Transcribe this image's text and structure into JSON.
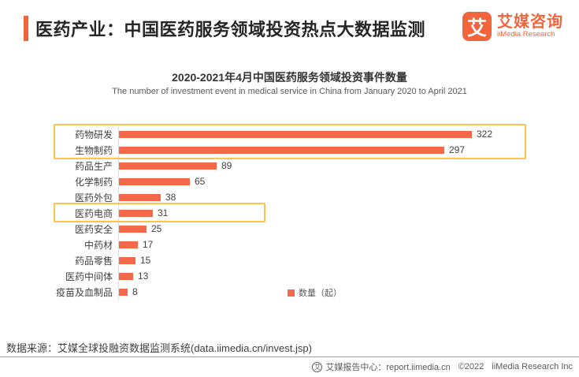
{
  "header": {
    "title": "医药产业：中国医药服务领域投资热点大数据监测",
    "logo": {
      "mark": "艾",
      "name_cn": "艾媒咨询",
      "name_en": "iiMedia Research"
    }
  },
  "chart_data": {
    "type": "bar",
    "orientation": "horizontal",
    "title": "2020-2021年4月中国医药服务领域投资事件数量",
    "subtitle": "The number of investment event in medical service in China from January 2020 to April 2021",
    "categories": [
      "药物研发",
      "生物制药",
      "药品生产",
      "化学制药",
      "医药外包",
      "医药电商",
      "医药安全",
      "中药材",
      "药品零售",
      "医药中间体",
      "疫苗及血制品"
    ],
    "values": [
      322,
      297,
      89,
      65,
      38,
      31,
      25,
      17,
      15,
      13,
      8
    ],
    "xlim": [
      0,
      340
    ],
    "grid": false,
    "legend": [
      "数量（起）"
    ],
    "legend_position": "bottom-center",
    "bar_color": "#F4694A",
    "highlight_border_color": "#FFC24B",
    "highlighted_groups": [
      {
        "categories": [
          "药物研发",
          "生物制药"
        ],
        "note": "top highlighted segments"
      },
      {
        "categories": [
          "医药电商"
        ],
        "note": "highlighted segment"
      }
    ]
  },
  "source": {
    "text": "数据来源：艾媒全球投融资数据监测系统(data.iimedia.cn/invest.jsp)"
  },
  "footer": {
    "icon": "艾",
    "report_center": "艾媒报告中心：report.iimedia.cn",
    "copyright": "©2022",
    "company": "iiMedia Research Inc"
  },
  "colors": {
    "brand_orange": "#F2653C",
    "bar_orange": "#F4694A",
    "highlight_gold": "#FFC24B",
    "title_dark": "#262626",
    "text_gray": "#595959"
  }
}
